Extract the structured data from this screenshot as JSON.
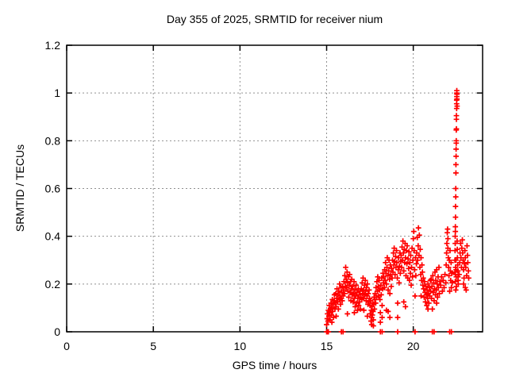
{
  "chart_data": {
    "type": "scatter",
    "title": "Day 355 of 2025, SRMTID for receiver nium",
    "xlabel": "GPS time / hours",
    "ylabel": "SRMTID / TECUs",
    "xlim": [
      0,
      24
    ],
    "ylim": [
      0,
      1.2
    ],
    "grid": true,
    "legend": "none",
    "marker": "plus",
    "marker_color": "#ff0000",
    "grid_color": "#909090",
    "axis_color": "#000000",
    "background_color": "#ffffff",
    "xticks": [
      {
        "v": 0,
        "label": "0",
        "grid": false
      },
      {
        "v": 5,
        "label": "5",
        "grid": true
      },
      {
        "v": 10,
        "label": "10",
        "grid": true
      },
      {
        "v": 15,
        "label": "15",
        "grid": true
      },
      {
        "v": 20,
        "label": "20",
        "grid": true
      }
    ],
    "yticks": [
      {
        "v": 0,
        "label": "0",
        "grid": false
      },
      {
        "v": 0.2,
        "label": "0.2",
        "grid": true
      },
      {
        "v": 0.4,
        "label": "0.4",
        "grid": true
      },
      {
        "v": 0.6,
        "label": "0.6",
        "grid": true
      },
      {
        "v": 0.8,
        "label": "0.8",
        "grid": true
      },
      {
        "v": 1,
        "label": "1",
        "grid": true
      },
      {
        "v": 1.2,
        "label": "1.2",
        "grid": false
      }
    ],
    "points": [
      [
        15.0,
        0
      ],
      [
        15.02,
        0
      ],
      [
        15.04,
        0
      ],
      [
        15.06,
        0
      ],
      [
        15.08,
        0
      ],
      [
        15.1,
        0
      ],
      [
        15.0,
        0.03
      ],
      [
        15.03,
        0.055
      ],
      [
        15.05,
        0.075
      ],
      [
        15.08,
        0.045
      ],
      [
        15.1,
        0.09
      ],
      [
        15.13,
        0.065
      ],
      [
        15.15,
        0.11
      ],
      [
        15.18,
        0.08
      ],
      [
        15.2,
        0.05
      ],
      [
        15.23,
        0.095
      ],
      [
        15.25,
        0.12
      ],
      [
        15.28,
        0.07
      ],
      [
        15.3,
        0.1
      ],
      [
        15.3,
        0.04
      ],
      [
        15.33,
        0.135
      ],
      [
        15.35,
        0.085
      ],
      [
        15.38,
        0.115
      ],
      [
        15.4,
        0.06
      ],
      [
        15.43,
        0.13
      ],
      [
        15.45,
        0.155
      ],
      [
        15.48,
        0.095
      ],
      [
        15.5,
        0.12
      ],
      [
        15.53,
        0.16
      ],
      [
        15.55,
        0.105
      ],
      [
        15.55,
        0.065
      ],
      [
        15.58,
        0.14
      ],
      [
        15.6,
        0.18
      ],
      [
        15.63,
        0.125
      ],
      [
        15.65,
        0.155
      ],
      [
        15.68,
        0.095
      ],
      [
        15.7,
        0.17
      ],
      [
        15.73,
        0.135
      ],
      [
        15.75,
        0.2
      ],
      [
        15.78,
        0.15
      ],
      [
        15.8,
        0.115
      ],
      [
        15.83,
        0.185
      ],
      [
        15.85,
        0
      ],
      [
        15.85,
        0.14
      ],
      [
        15.88,
        0.165
      ],
      [
        15.9,
        0.13
      ],
      [
        15.93,
        0.19
      ],
      [
        15.95,
        0
      ],
      [
        15.95,
        0.15
      ],
      [
        15.98,
        0.175
      ],
      [
        16.0,
        0.21
      ],
      [
        16.03,
        0.16
      ],
      [
        16.05,
        0.235
      ],
      [
        16.08,
        0.19
      ],
      [
        16.1,
        0.27
      ],
      [
        16.13,
        0.22
      ],
      [
        16.15,
        0.185
      ],
      [
        16.18,
        0.25
      ],
      [
        16.2,
        0.205
      ],
      [
        16.2,
        0.075
      ],
      [
        16.23,
        0.17
      ],
      [
        16.25,
        0.23
      ],
      [
        16.28,
        0.145
      ],
      [
        16.3,
        0.195
      ],
      [
        16.33,
        0.24
      ],
      [
        16.35,
        0.165
      ],
      [
        16.38,
        0.21
      ],
      [
        16.4,
        0.13
      ],
      [
        16.43,
        0.18
      ],
      [
        16.45,
        0.22
      ],
      [
        16.48,
        0.155
      ],
      [
        16.5,
        0.19
      ],
      [
        16.53,
        0.125
      ],
      [
        16.55,
        0.16
      ],
      [
        16.58,
        0.21
      ],
      [
        16.6,
        0.14
      ],
      [
        16.6,
        0.08
      ],
      [
        16.63,
        0.175
      ],
      [
        16.65,
        0.105
      ],
      [
        16.68,
        0.15
      ],
      [
        16.7,
        0.195
      ],
      [
        16.73,
        0.12
      ],
      [
        16.75,
        0.165
      ],
      [
        16.78,
        0.09
      ],
      [
        16.8,
        0.14
      ],
      [
        16.83,
        0.18
      ],
      [
        16.85,
        0.11
      ],
      [
        16.88,
        0.155
      ],
      [
        16.9,
        0.125
      ],
      [
        16.93,
        0.17
      ],
      [
        16.95,
        0.095
      ],
      [
        16.98,
        0.145
      ],
      [
        17.0,
        0.18
      ],
      [
        17.03,
        0.135
      ],
      [
        17.05,
        0.205
      ],
      [
        17.08,
        0.16
      ],
      [
        17.1,
        0.225
      ],
      [
        17.13,
        0.175
      ],
      [
        17.15,
        0.14
      ],
      [
        17.15,
        0.09
      ],
      [
        17.18,
        0.195
      ],
      [
        17.2,
        0.155
      ],
      [
        17.23,
        0.215
      ],
      [
        17.25,
        0.17
      ],
      [
        17.28,
        0.13
      ],
      [
        17.3,
        0.185
      ],
      [
        17.33,
        0.15
      ],
      [
        17.35,
        0.2
      ],
      [
        17.35,
        0.065
      ],
      [
        17.38,
        0.115
      ],
      [
        17.4,
        0.16
      ],
      [
        17.43,
        0.125
      ],
      [
        17.45,
        0.175
      ],
      [
        17.48,
        0.14
      ],
      [
        17.5,
        0.11
      ],
      [
        17.52,
        0.075
      ],
      [
        17.54,
        0.13
      ],
      [
        17.56,
        0.045
      ],
      [
        17.58,
        0.09
      ],
      [
        17.6,
        0.06
      ],
      [
        17.6,
        0.03
      ],
      [
        17.62,
        0.105
      ],
      [
        17.64,
        0.07
      ],
      [
        17.66,
        0.12
      ],
      [
        17.68,
        0.085
      ],
      [
        17.7,
        0.05
      ],
      [
        17.7,
        0.025
      ],
      [
        17.72,
        0.115
      ],
      [
        17.74,
        0.145
      ],
      [
        17.76,
        0.095
      ],
      [
        17.78,
        0.135
      ],
      [
        17.8,
        0.16
      ],
      [
        17.83,
        0.12
      ],
      [
        17.85,
        0.185
      ],
      [
        17.88,
        0.145
      ],
      [
        17.9,
        0.21
      ],
      [
        17.93,
        0.17
      ],
      [
        17.95,
        0.23
      ],
      [
        17.98,
        0.19
      ],
      [
        18.0,
        0.15
      ],
      [
        18.03,
        0.215
      ],
      [
        18.05,
        0.175
      ],
      [
        18.08,
        0.135
      ],
      [
        18.1,
        0
      ],
      [
        18.1,
        0.08
      ],
      [
        18.1,
        0.04
      ],
      [
        18.13,
        0.195
      ],
      [
        18.15,
        0.155
      ],
      [
        18.18,
        0.225
      ],
      [
        18.2,
        0
      ],
      [
        18.2,
        0.06
      ],
      [
        18.2,
        0.11
      ],
      [
        18.23,
        0.18
      ],
      [
        18.25,
        0.245
      ],
      [
        18.28,
        0.205
      ],
      [
        18.3,
        0.23
      ],
      [
        18.33,
        0.185
      ],
      [
        18.35,
        0.26
      ],
      [
        18.38,
        0.215
      ],
      [
        18.4,
        0.29
      ],
      [
        18.43,
        0.245
      ],
      [
        18.45,
        0.2
      ],
      [
        18.45,
        0.09
      ],
      [
        18.48,
        0.27
      ],
      [
        18.5,
        0.31
      ],
      [
        18.53,
        0.235
      ],
      [
        18.55,
        0.175
      ],
      [
        18.55,
        0.085
      ],
      [
        18.58,
        0.255
      ],
      [
        18.6,
        0.3
      ],
      [
        18.63,
        0.22
      ],
      [
        18.65,
        0.16
      ],
      [
        18.65,
        0.06
      ],
      [
        18.68,
        0.28
      ],
      [
        18.7,
        0.24
      ],
      [
        18.73,
        0.19
      ],
      [
        18.75,
        0.265
      ],
      [
        18.78,
        0.225
      ],
      [
        18.8,
        0.3
      ],
      [
        18.83,
        0.25
      ],
      [
        18.85,
        0.33
      ],
      [
        18.88,
        0.28
      ],
      [
        18.9,
        0.35
      ],
      [
        18.93,
        0.295
      ],
      [
        18.95,
        0.24
      ],
      [
        18.98,
        0.315
      ],
      [
        19.0,
        0.27
      ],
      [
        19.03,
        0.34
      ],
      [
        19.05,
        0.29
      ],
      [
        19.08,
        0.225
      ],
      [
        19.1,
        0
      ],
      [
        19.1,
        0.12
      ],
      [
        19.1,
        0.06
      ],
      [
        19.13,
        0.26
      ],
      [
        19.15,
        0.31
      ],
      [
        19.18,
        0.205
      ],
      [
        19.2,
        0.275
      ],
      [
        19.23,
        0.33
      ],
      [
        19.25,
        0.245
      ],
      [
        19.28,
        0.295
      ],
      [
        19.3,
        0.32
      ],
      [
        19.33,
        0.27
      ],
      [
        19.35,
        0.355
      ],
      [
        19.38,
        0.3
      ],
      [
        19.4,
        0.38
      ],
      [
        19.43,
        0.33
      ],
      [
        19.45,
        0.255
      ],
      [
        19.45,
        0.125
      ],
      [
        19.48,
        0.345
      ],
      [
        19.5,
        0.29
      ],
      [
        19.53,
        0.37
      ],
      [
        19.55,
        0.31
      ],
      [
        19.55,
        0.105
      ],
      [
        19.58,
        0.235
      ],
      [
        19.6,
        0.34
      ],
      [
        19.63,
        0.285
      ],
      [
        19.65,
        0.36
      ],
      [
        19.68,
        0.225
      ],
      [
        19.7,
        0.305
      ],
      [
        19.73,
        0.265
      ],
      [
        19.75,
        0.335
      ],
      [
        19.78,
        0.215
      ],
      [
        19.8,
        0.29
      ],
      [
        19.83,
        0.245
      ],
      [
        19.85,
        0.32
      ],
      [
        19.88,
        0.195
      ],
      [
        19.9,
        0.27
      ],
      [
        19.93,
        0.35
      ],
      [
        19.95,
        0.23
      ],
      [
        19.98,
        0.3
      ],
      [
        20.0,
        0.39
      ],
      [
        20.03,
        0.42
      ],
      [
        20.05,
        0.34
      ],
      [
        20.08,
        0.26
      ],
      [
        20.1,
        0
      ],
      [
        20.1,
        0.15
      ],
      [
        20.13,
        0.31
      ],
      [
        20.15,
        0.235
      ],
      [
        20.18,
        0.285
      ],
      [
        20.2,
        0.33
      ],
      [
        20.23,
        0.395
      ],
      [
        20.25,
        0.3
      ],
      [
        20.28,
        0.36
      ],
      [
        20.3,
        0.435
      ],
      [
        20.33,
        0.32
      ],
      [
        20.35,
        0.405
      ],
      [
        20.38,
        0.27
      ],
      [
        20.4,
        0.345
      ],
      [
        20.43,
        0.24
      ],
      [
        20.45,
        0.31
      ],
      [
        20.45,
        0.15
      ],
      [
        20.48,
        0.215
      ],
      [
        20.5,
        0.28
      ],
      [
        20.53,
        0.25
      ],
      [
        20.55,
        0.195
      ],
      [
        20.58,
        0.225
      ],
      [
        20.6,
        0.18
      ],
      [
        20.63,
        0.145
      ],
      [
        20.65,
        0.21
      ],
      [
        20.68,
        0.165
      ],
      [
        20.7,
        0.125
      ],
      [
        20.73,
        0.19
      ],
      [
        20.75,
        0.155
      ],
      [
        20.78,
        0.11
      ],
      [
        20.8,
        0.175
      ],
      [
        20.83,
        0.14
      ],
      [
        20.85,
        0.2
      ],
      [
        20.85,
        0.095
      ],
      [
        20.88,
        0.16
      ],
      [
        20.9,
        0.12
      ],
      [
        20.93,
        0.185
      ],
      [
        20.95,
        0.15
      ],
      [
        20.98,
        0.215
      ],
      [
        21.0,
        0.17
      ],
      [
        21.03,
        0.22
      ],
      [
        21.05,
        0.14
      ],
      [
        21.08,
        0.19
      ],
      [
        21.1,
        0
      ],
      [
        21.1,
        0.095
      ],
      [
        21.13,
        0.235
      ],
      [
        21.15,
        0.165
      ],
      [
        21.18,
        0.205
      ],
      [
        21.2,
        0
      ],
      [
        21.2,
        0.13
      ],
      [
        21.23,
        0.18
      ],
      [
        21.25,
        0.25
      ],
      [
        21.28,
        0.155
      ],
      [
        21.3,
        0.215
      ],
      [
        21.33,
        0.175
      ],
      [
        21.35,
        0.26
      ],
      [
        21.35,
        0.12
      ],
      [
        21.38,
        0.2
      ],
      [
        21.4,
        0.145
      ],
      [
        21.43,
        0.23
      ],
      [
        21.45,
        0.185
      ],
      [
        21.48,
        0.27
      ],
      [
        21.5,
        0.16
      ],
      [
        21.53,
        0.21
      ],
      [
        21.58,
        0.195
      ],
      [
        21.63,
        0.23
      ],
      [
        21.68,
        0.17
      ],
      [
        21.73,
        0.215
      ],
      [
        21.78,
        0.185
      ],
      [
        21.83,
        0.24
      ],
      [
        21.88,
        0.205
      ],
      [
        21.9,
        0.28
      ],
      [
        21.92,
        0.33
      ],
      [
        21.94,
        0.37
      ],
      [
        21.96,
        0.415
      ],
      [
        21.98,
        0.43
      ],
      [
        22.0,
        0.39
      ],
      [
        22.0,
        0.35
      ],
      [
        22.02,
        0.31
      ],
      [
        22.04,
        0.27
      ],
      [
        22.06,
        0.235
      ],
      [
        22.08,
        0.3
      ],
      [
        22.1,
        0
      ],
      [
        22.1,
        0.17
      ],
      [
        22.12,
        0.34
      ],
      [
        22.14,
        0.255
      ],
      [
        22.16,
        0.215
      ],
      [
        22.18,
        0.29
      ],
      [
        22.2,
        0
      ],
      [
        22.2,
        0.185
      ],
      [
        22.22,
        0.245
      ],
      [
        22.24,
        0.205
      ],
      [
        22.4,
        0.25
      ],
      [
        22.4,
        0.3
      ],
      [
        22.41,
        0.34
      ],
      [
        22.42,
        0.37
      ],
      [
        22.42,
        0.4
      ],
      [
        22.42,
        0.21
      ],
      [
        22.43,
        0.42
      ],
      [
        22.43,
        0.44
      ],
      [
        22.43,
        0.24
      ],
      [
        22.44,
        0.48
      ],
      [
        22.44,
        0.525
      ],
      [
        22.44,
        0.27
      ],
      [
        22.45,
        0.565
      ],
      [
        22.45,
        0.6
      ],
      [
        22.45,
        0.175
      ],
      [
        22.46,
        0.665
      ],
      [
        22.46,
        0.7
      ],
      [
        22.46,
        0.3
      ],
      [
        22.47,
        0.735
      ],
      [
        22.47,
        0.765
      ],
      [
        22.47,
        0.26
      ],
      [
        22.48,
        0.79
      ],
      [
        22.48,
        0.8
      ],
      [
        22.48,
        0.845
      ],
      [
        22.48,
        0.23
      ],
      [
        22.49,
        0.85
      ],
      [
        22.49,
        0.89
      ],
      [
        22.49,
        0.905
      ],
      [
        22.49,
        0.19
      ],
      [
        22.5,
        0.935
      ],
      [
        22.5,
        0.955
      ],
      [
        22.5,
        0.97
      ],
      [
        22.51,
        0.985
      ],
      [
        22.51,
        1.0
      ],
      [
        22.51,
        1.01
      ],
      [
        22.52,
        0.995
      ],
      [
        22.52,
        0.975
      ],
      [
        22.53,
        0.945
      ],
      [
        22.53,
        0.38
      ],
      [
        22.54,
        0.345
      ],
      [
        22.55,
        0.31
      ],
      [
        22.56,
        0.28
      ],
      [
        22.57,
        0.255
      ],
      [
        22.58,
        0.23
      ],
      [
        22.59,
        0.215
      ],
      [
        22.6,
        0.2
      ],
      [
        22.65,
        0.24
      ],
      [
        22.68,
        0.29
      ],
      [
        22.7,
        0.33
      ],
      [
        22.73,
        0.37
      ],
      [
        22.75,
        0.31
      ],
      [
        22.78,
        0.27
      ],
      [
        22.8,
        0.35
      ],
      [
        22.83,
        0.385
      ],
      [
        22.85,
        0.33
      ],
      [
        22.88,
        0.3
      ],
      [
        22.9,
        0.26
      ],
      [
        22.9,
        0.2
      ],
      [
        22.93,
        0.225
      ],
      [
        22.95,
        0.285
      ],
      [
        22.98,
        0.34
      ],
      [
        23.0,
        0.31
      ],
      [
        23.0,
        0.185
      ],
      [
        23.03,
        0.27
      ],
      [
        23.05,
        0.175
      ],
      [
        23.08,
        0.235
      ],
      [
        23.1,
        0.36
      ],
      [
        23.13,
        0.32
      ],
      [
        23.15,
        0.29
      ],
      [
        23.18,
        0.255
      ],
      [
        23.2,
        0.225
      ]
    ]
  }
}
